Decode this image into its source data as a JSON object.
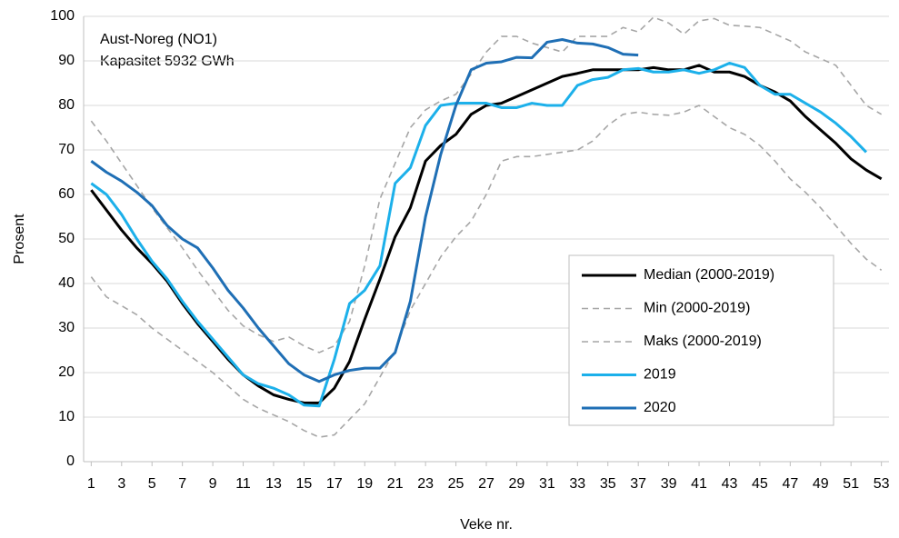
{
  "chart_data": {
    "type": "line",
    "annotations": [
      "Aust-Noreg (NO1)",
      "Kapasitet 5932 GWh"
    ],
    "x_label": "Veke nr.",
    "y_label": "Prosent",
    "x": [
      1,
      2,
      3,
      4,
      5,
      6,
      7,
      8,
      9,
      10,
      11,
      12,
      13,
      14,
      15,
      16,
      17,
      18,
      19,
      20,
      21,
      22,
      23,
      24,
      25,
      26,
      27,
      28,
      29,
      30,
      31,
      32,
      33,
      34,
      35,
      36,
      37,
      38,
      39,
      40,
      41,
      42,
      43,
      44,
      45,
      46,
      47,
      48,
      49,
      50,
      51,
      52,
      53
    ],
    "xlim": [
      0.5,
      53.5
    ],
    "xticks": [
      1,
      3,
      5,
      7,
      9,
      11,
      13,
      15,
      17,
      19,
      21,
      23,
      25,
      27,
      29,
      31,
      33,
      35,
      37,
      39,
      41,
      43,
      45,
      47,
      49,
      51,
      53
    ],
    "ylim": [
      0,
      100
    ],
    "yticks": [
      0,
      10,
      20,
      30,
      40,
      50,
      60,
      70,
      80,
      90,
      100
    ],
    "grid": true,
    "series": [
      {
        "name": "Median (2000-2019)",
        "color": "#000000",
        "dashed": false,
        "values": [
          61,
          56.5,
          52,
          48,
          44.5,
          40.5,
          35.5,
          31,
          27,
          23,
          19.5,
          17,
          15,
          14,
          13.2,
          13.2,
          16.5,
          22.5,
          32,
          41,
          50.5,
          57,
          67.5,
          71,
          73.5,
          78,
          80,
          80.5,
          82,
          83.5,
          85,
          86.5,
          87.2,
          88,
          88,
          88,
          88,
          88.5,
          88,
          88,
          89,
          87.5,
          87.5,
          86.5,
          84.5,
          83,
          81,
          77.5,
          74.5,
          71.5,
          68,
          65.5,
          63.5
        ]
      },
      {
        "name": "Min (2000-2019)",
        "color": "#a6a6a6",
        "dashed": true,
        "values": [
          41.5,
          37,
          35,
          33,
          30,
          27.5,
          25,
          22.5,
          20,
          17,
          14,
          12,
          10.5,
          9,
          7,
          5.5,
          6,
          9.5,
          13,
          19,
          25,
          34,
          40,
          46,
          50.5,
          54,
          60,
          67.5,
          68.5,
          68.5,
          69,
          69.5,
          70,
          72,
          75.5,
          78,
          78.5,
          78,
          77.8,
          78.5,
          80,
          77.5,
          75,
          73.5,
          71,
          67.5,
          63.5,
          60.5,
          57,
          53,
          49,
          45.5,
          43
        ]
      },
      {
        "name": "Maks (2000-2019)",
        "color": "#a6a6a6",
        "dashed": true,
        "values": [
          76.5,
          72,
          67,
          62,
          57,
          52.5,
          48,
          43,
          38.5,
          34,
          30.5,
          28.5,
          27,
          28,
          26,
          24.5,
          26,
          31.5,
          44,
          59,
          67,
          75,
          79,
          81,
          82.5,
          87,
          92,
          95.5,
          95.5,
          94,
          93,
          92,
          95.5,
          95.5,
          95.5,
          97.5,
          96.5,
          99.8,
          98.5,
          96,
          99,
          99.5,
          98,
          97.8,
          97.5,
          96,
          94.5,
          92,
          90.5,
          89,
          84.5,
          80,
          78
        ]
      },
      {
        "name": "2019",
        "color": "#1cb0ea",
        "dashed": false,
        "values": [
          62.5,
          60,
          55.5,
          50,
          45,
          41,
          36,
          31.5,
          27.5,
          23.5,
          19.5,
          17.5,
          16.5,
          15,
          12.7,
          12.5,
          23,
          35.5,
          38.5,
          44,
          62.5,
          66,
          75.5,
          80,
          80.5,
          80.5,
          80.5,
          79.5,
          79.5,
          80.5,
          80,
          80,
          84.5,
          85.8,
          86.3,
          88,
          88.3,
          87.5,
          87.5,
          88,
          87.2,
          88,
          89.5,
          88.5,
          84.5,
          82.5,
          82.5,
          80.5,
          78.5,
          76,
          73,
          69.5,
          null
        ]
      },
      {
        "name": "2020",
        "color": "#1f6fb5",
        "dashed": false,
        "values": [
          67.5,
          65,
          63,
          60.5,
          57.5,
          53,
          50,
          48,
          43.5,
          38.5,
          34.5,
          30,
          26,
          22,
          19.5,
          18,
          19.5,
          20.5,
          21,
          21,
          24.5,
          36,
          55,
          69,
          80,
          88,
          89.5,
          89.8,
          90.8,
          90.7,
          94.2,
          94.8,
          94,
          93.8,
          93,
          91.5,
          91.3,
          null,
          null,
          null,
          null,
          null,
          null,
          null,
          null,
          null,
          null,
          null,
          null,
          null,
          null,
          null,
          null
        ]
      }
    ]
  }
}
